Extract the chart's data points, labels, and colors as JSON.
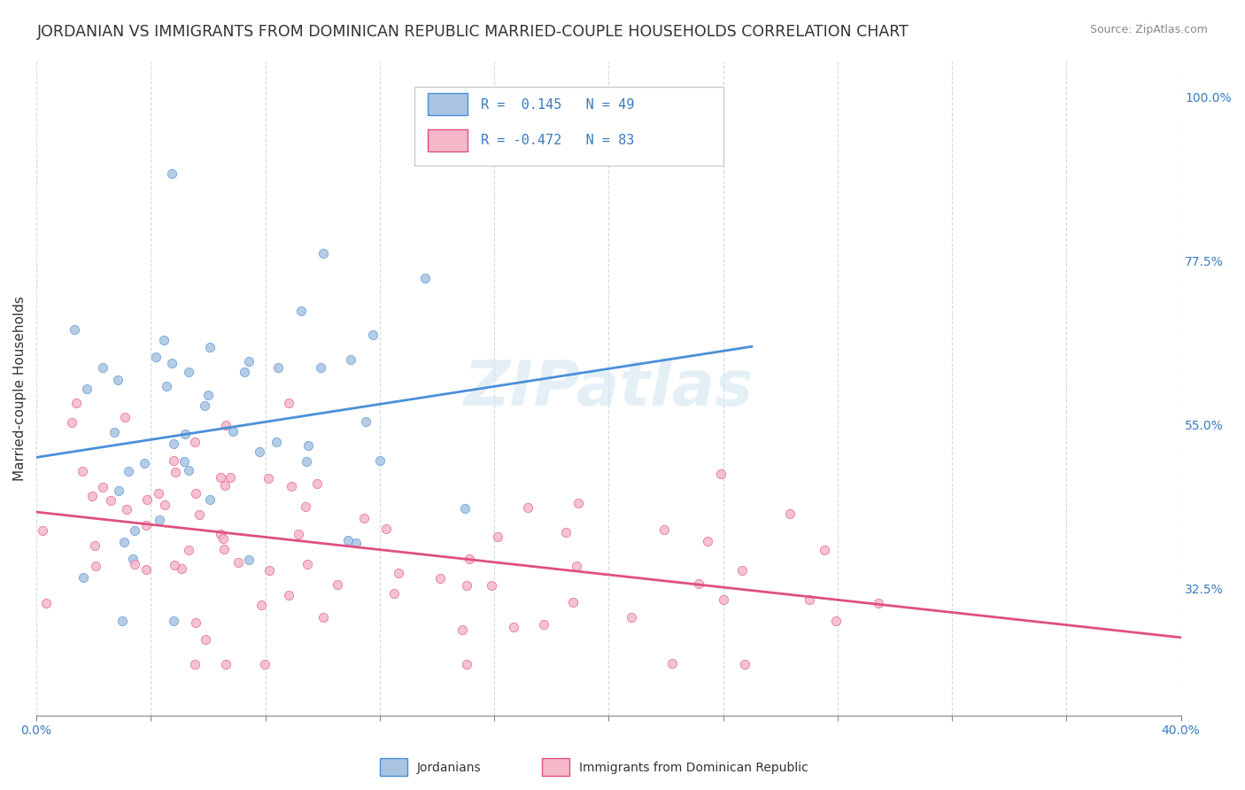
{
  "title": "JORDANIAN VS IMMIGRANTS FROM DOMINICAN REPUBLIC MARRIED-COUPLE HOUSEHOLDS CORRELATION CHART",
  "source": "Source: ZipAtlas.com",
  "ylabel": "Married-couple Households",
  "ylabel_right_labels": [
    "100.0%",
    "77.5%",
    "55.0%",
    "32.5%"
  ],
  "ylabel_right_values": [
    1.0,
    0.775,
    0.55,
    0.325
  ],
  "jordanians": {
    "R": 0.145,
    "N": 49,
    "scatter_color": "#a8c4e0",
    "line_color": "#4a90d9"
  },
  "dominican": {
    "R": -0.472,
    "N": 83,
    "scatter_color": "#f4b8c8",
    "line_color": "#e05080"
  },
  "background_color": "#ffffff",
  "grid_color": "#c8d8e8",
  "xmin": 0.0,
  "xmax": 0.4,
  "ymin": 0.15,
  "ymax": 1.05
}
